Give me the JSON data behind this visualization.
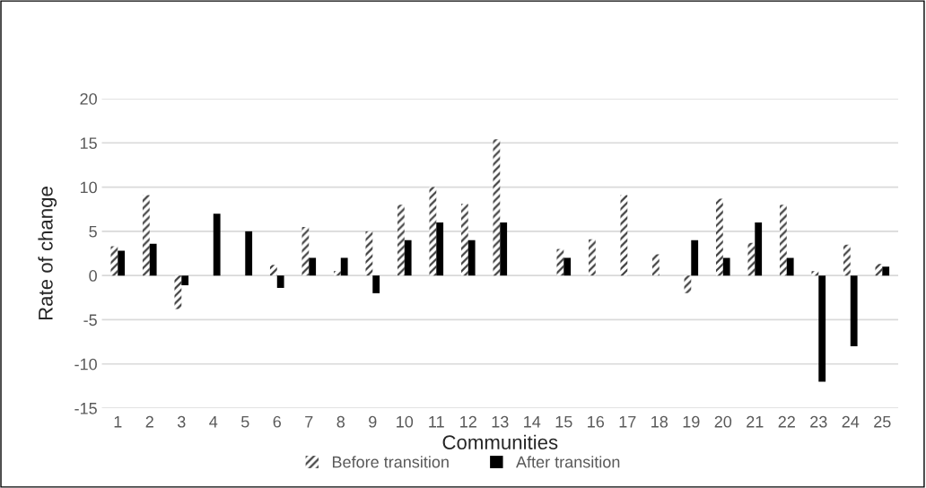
{
  "chart_data": {
    "type": "bar",
    "xlabel": "Communities",
    "ylabel": "Rate of change",
    "categories": [
      "1",
      "2",
      "3",
      "4",
      "5",
      "6",
      "7",
      "8",
      "9",
      "10",
      "11",
      "12",
      "13",
      "14",
      "15",
      "16",
      "17",
      "18",
      "19",
      "20",
      "21",
      "22",
      "23",
      "24",
      "25"
    ],
    "series": [
      {
        "name": "Before transition",
        "color": "#404040",
        "values": [
          3.3,
          9.1,
          -3.8,
          0,
          0,
          1.2,
          5.5,
          0.5,
          5.0,
          8.0,
          10.0,
          8.1,
          15.4,
          0,
          3.0,
          4.1,
          9.1,
          2.4,
          -2.0,
          8.7,
          3.7,
          8.0,
          0.5,
          3.5,
          1.3
        ]
      },
      {
        "name": "After transition",
        "color": "#000000",
        "values": [
          2.8,
          3.6,
          -1.1,
          7.0,
          5.0,
          -1.4,
          2.0,
          2.0,
          -2.0,
          4.0,
          6.0,
          4.0,
          6.0,
          0,
          2.0,
          0,
          0,
          0,
          4.0,
          2.0,
          6.0,
          2.0,
          -12.0,
          -8.0,
          1.0
        ]
      }
    ],
    "ylim": [
      -15,
      20
    ],
    "yticks": [
      -15,
      -10,
      -5,
      0,
      5,
      10,
      15,
      20
    ],
    "grid": "y",
    "legend": "bottom"
  }
}
